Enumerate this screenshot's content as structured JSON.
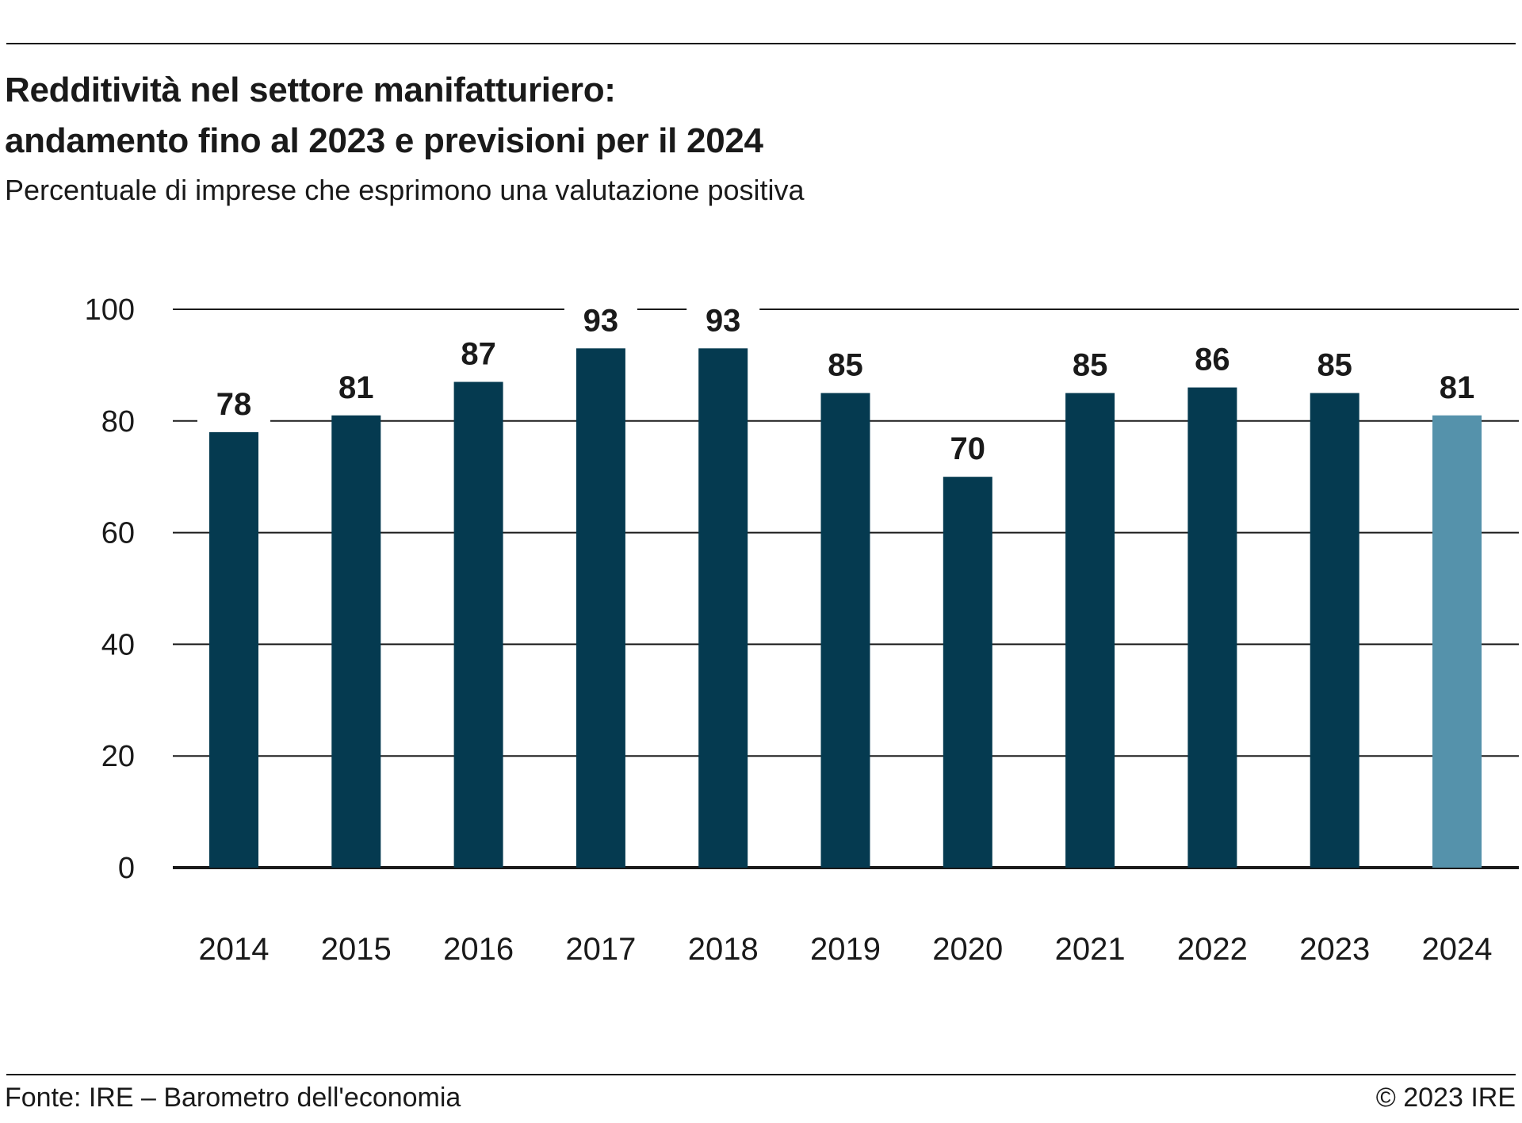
{
  "header": {
    "title_line1": "Redditività nel settore manifatturiero:",
    "title_line2": "andamento fino al 2023 e previsioni per il 2024",
    "subtitle": "Percentuale di imprese che esprimono una valutazione positiva"
  },
  "footer": {
    "source": "Fonte: IRE – Barometro dell'economia",
    "copyright": "© 2023 IRE"
  },
  "colors": {
    "actual": "#053a50",
    "forecast": "#5592ab",
    "grid": "#1a1a1a",
    "text": "#1a1a1a"
  },
  "chart_data": {
    "type": "bar",
    "categories": [
      "2014",
      "2015",
      "2016",
      "2017",
      "2018",
      "2019",
      "2020",
      "2021",
      "2022",
      "2023",
      "2024"
    ],
    "values": [
      78,
      81,
      87,
      93,
      93,
      85,
      70,
      85,
      86,
      85,
      81
    ],
    "data_labels": [
      "78",
      "81",
      "87",
      "93",
      "93",
      "85",
      "70",
      "85",
      "86",
      "85",
      "81"
    ],
    "forecast_categories": [
      "2024"
    ],
    "ylim": [
      0,
      100
    ],
    "yticks": [
      0,
      20,
      40,
      60,
      80,
      100
    ],
    "ytick_labels": [
      "0",
      "20",
      "40",
      "60",
      "80",
      "100"
    ],
    "grid": true,
    "legend": "none"
  }
}
